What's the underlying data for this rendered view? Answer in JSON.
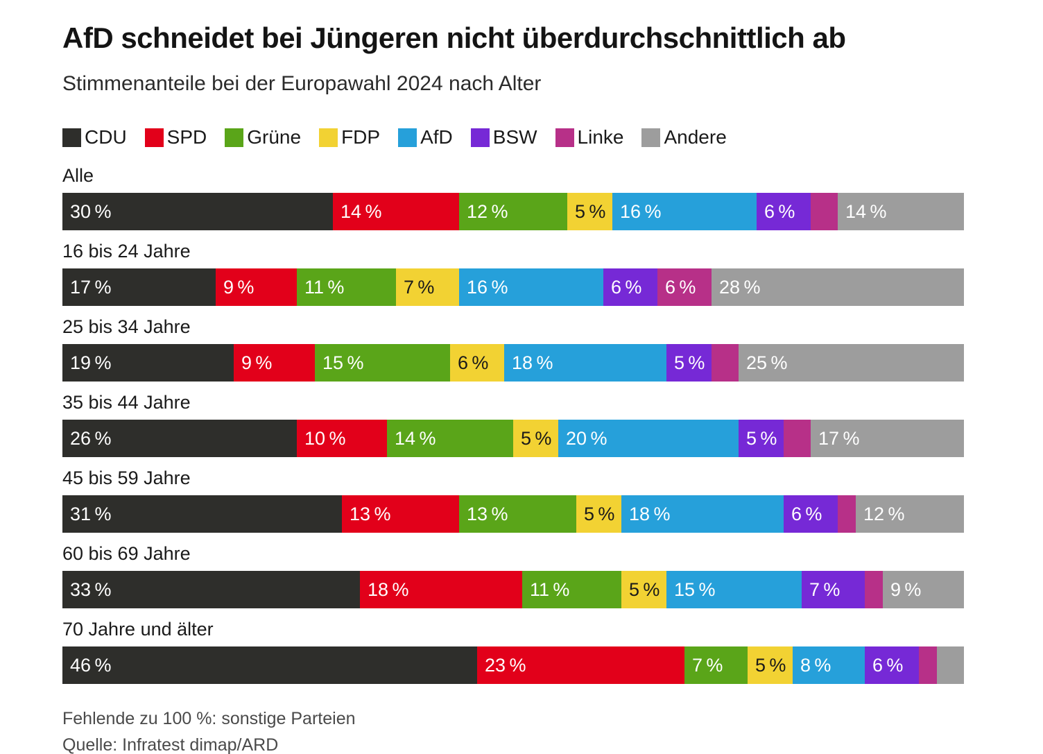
{
  "header": {
    "title": "AfD schneidet bei Jüngeren nicht überdurchschnittlich ab",
    "subtitle": "Stimmenanteile bei der Europawahl 2024 nach Alter"
  },
  "chart_data": {
    "type": "bar",
    "stacked": true,
    "orientation": "horizontal",
    "unit": "%",
    "x_max": 100,
    "legend_position": "top",
    "label_threshold": 5,
    "categories": [
      "Alle",
      "16 bis 24 Jahre",
      "25 bis 34 Jahre",
      "35 bis 44 Jahre",
      "45 bis 59 Jahre",
      "60 bis 69 Jahre",
      "70 Jahre und älter"
    ],
    "series": [
      {
        "name": "CDU",
        "color": "#2e2e2b",
        "dark_label": false,
        "values": [
          30,
          17,
          19,
          26,
          31,
          33,
          46
        ]
      },
      {
        "name": "SPD",
        "color": "#e2001a",
        "dark_label": false,
        "values": [
          14,
          9,
          9,
          10,
          13,
          18,
          23
        ]
      },
      {
        "name": "Grüne",
        "color": "#5aa519",
        "dark_label": false,
        "values": [
          12,
          11,
          15,
          14,
          13,
          11,
          7
        ]
      },
      {
        "name": "FDP",
        "color": "#f2d233",
        "dark_label": true,
        "values": [
          5,
          7,
          6,
          5,
          5,
          5,
          5
        ]
      },
      {
        "name": "AfD",
        "color": "#26a0da",
        "dark_label": false,
        "values": [
          16,
          16,
          18,
          20,
          18,
          15,
          8
        ]
      },
      {
        "name": "BSW",
        "color": "#7629d6",
        "dark_label": false,
        "values": [
          6,
          6,
          5,
          5,
          6,
          7,
          6
        ]
      },
      {
        "name": "Linke",
        "color": "#b73088",
        "dark_label": false,
        "values": [
          3,
          6,
          3,
          3,
          2,
          2,
          2
        ]
      },
      {
        "name": "Andere",
        "color": "#9d9d9d",
        "dark_label": false,
        "values": [
          14,
          28,
          25,
          17,
          12,
          9,
          3
        ]
      }
    ]
  },
  "footer": {
    "note": "Fehlende zu 100 %: sonstige Parteien",
    "source": "Quelle: Infratest dimap/ARD"
  }
}
